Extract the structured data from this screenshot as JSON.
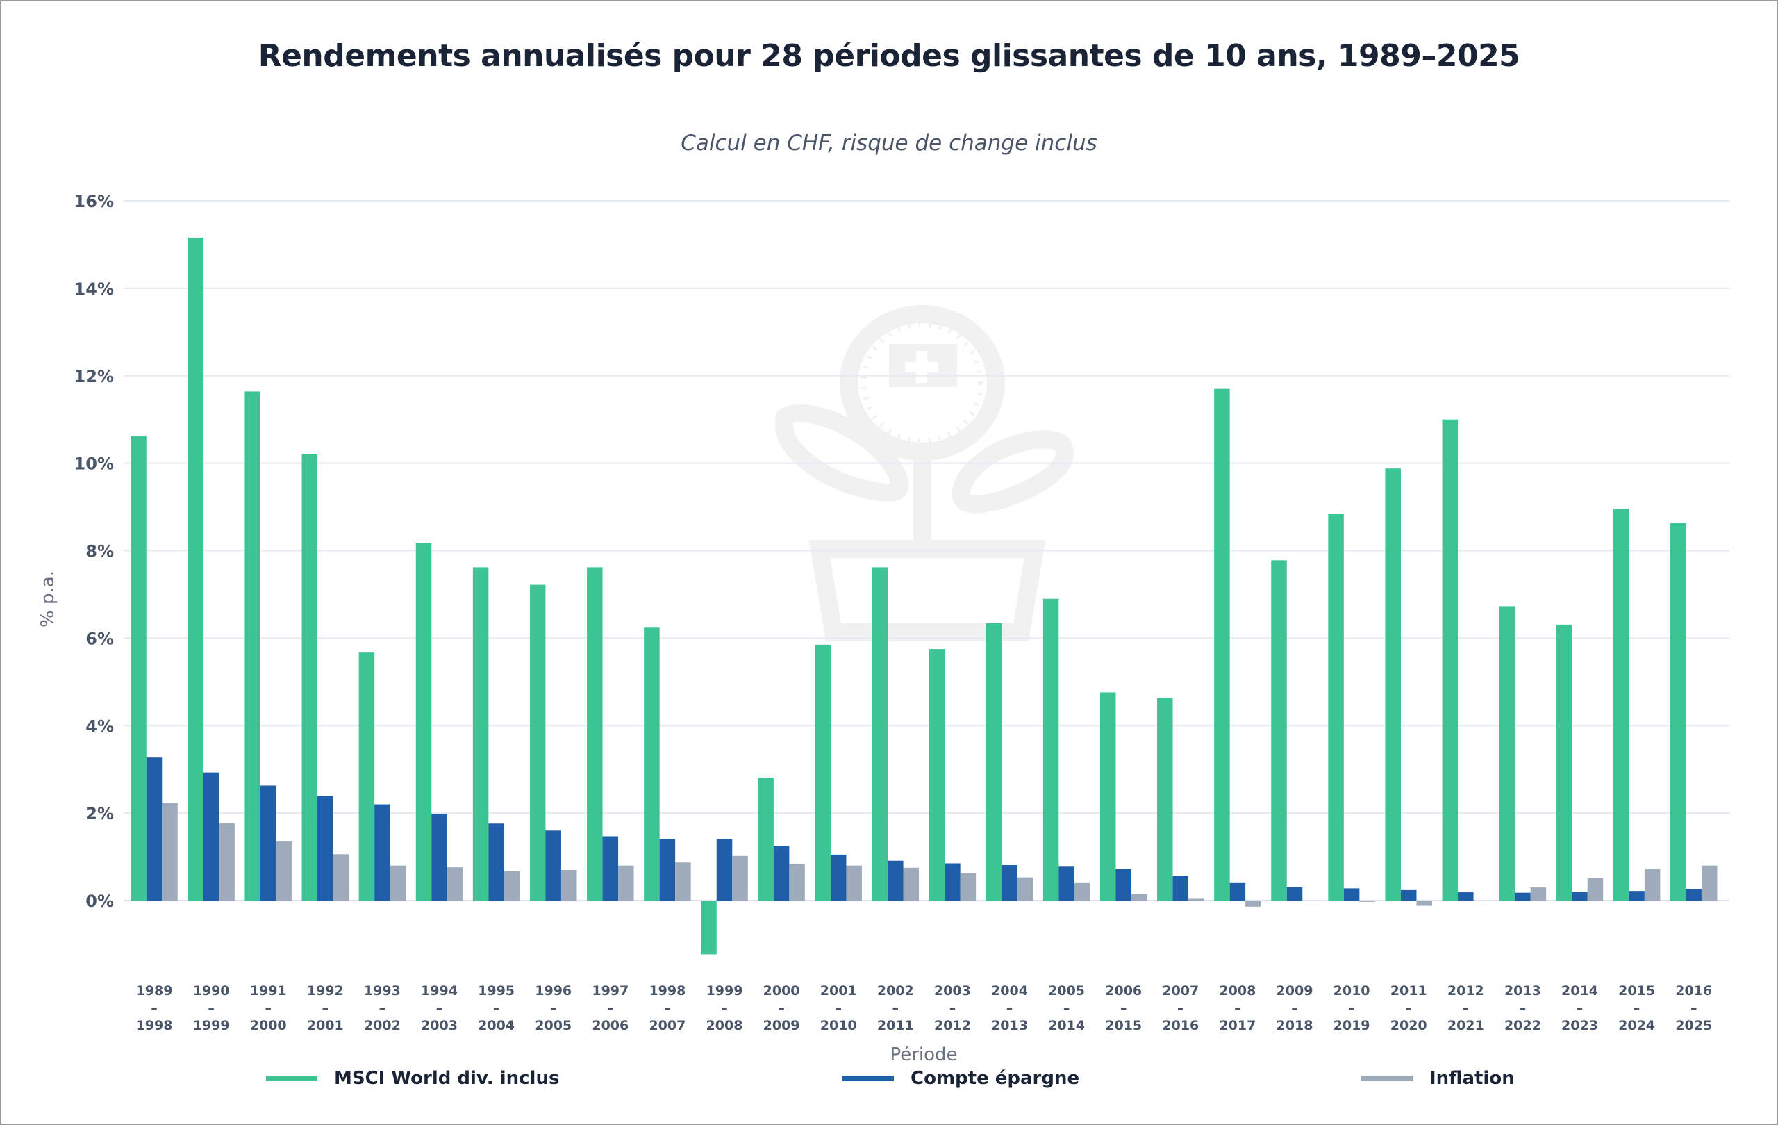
{
  "chart_data": {
    "type": "bar",
    "title": "Rendements annualisés pour 28 périodes glissantes de 10 ans, 1989–2025",
    "subtitle": "Calcul en CHF, risque de change inclus",
    "xlabel": "Période",
    "ylabel": "% p.a.",
    "ylim": [
      -2,
      16
    ],
    "yticks": [
      0,
      2,
      4,
      6,
      8,
      10,
      12,
      14,
      16
    ],
    "ytick_labels": [
      "0%",
      "2%",
      "4%",
      "6%",
      "8%",
      "10%",
      "12%",
      "14%",
      "16%"
    ],
    "grid": true,
    "legend_position": "bottom",
    "categories": [
      {
        "start": "1989",
        "sep": "–",
        "end": "1998"
      },
      {
        "start": "1990",
        "sep": "–",
        "end": "1999"
      },
      {
        "start": "1991",
        "sep": "–",
        "end": "2000"
      },
      {
        "start": "1992",
        "sep": "–",
        "end": "2001"
      },
      {
        "start": "1993",
        "sep": "–",
        "end": "2002"
      },
      {
        "start": "1994",
        "sep": "–",
        "end": "2003"
      },
      {
        "start": "1995",
        "sep": "–",
        "end": "2004"
      },
      {
        "start": "1996",
        "sep": "–",
        "end": "2005"
      },
      {
        "start": "1997",
        "sep": "–",
        "end": "2006"
      },
      {
        "start": "1998",
        "sep": "–",
        "end": "2007"
      },
      {
        "start": "1999",
        "sep": "–",
        "end": "2008"
      },
      {
        "start": "2000",
        "sep": "–",
        "end": "2009"
      },
      {
        "start": "2001",
        "sep": "–",
        "end": "2010"
      },
      {
        "start": "2002",
        "sep": "–",
        "end": "2011"
      },
      {
        "start": "2003",
        "sep": "–",
        "end": "2012"
      },
      {
        "start": "2004",
        "sep": "–",
        "end": "2013"
      },
      {
        "start": "2005",
        "sep": "–",
        "end": "2014"
      },
      {
        "start": "2006",
        "sep": "–",
        "end": "2015"
      },
      {
        "start": "2007",
        "sep": "–",
        "end": "2016"
      },
      {
        "start": "2008",
        "sep": "–",
        "end": "2017"
      },
      {
        "start": "2009",
        "sep": "–",
        "end": "2018"
      },
      {
        "start": "2010",
        "sep": "–",
        "end": "2019"
      },
      {
        "start": "2011",
        "sep": "–",
        "end": "2020"
      },
      {
        "start": "2012",
        "sep": "–",
        "end": "2021"
      },
      {
        "start": "2013",
        "sep": "–",
        "end": "2022"
      },
      {
        "start": "2014",
        "sep": "–",
        "end": "2023"
      },
      {
        "start": "2015",
        "sep": "–",
        "end": "2024"
      },
      {
        "start": "2016",
        "sep": "–",
        "end": "2025"
      }
    ],
    "series": [
      {
        "name": "MSCI World div. inclus",
        "color": "#3cc492",
        "values": [
          10.62,
          15.16,
          11.64,
          10.21,
          5.67,
          8.18,
          7.62,
          7.22,
          7.62,
          6.24,
          -1.23,
          2.81,
          5.85,
          7.62,
          5.75,
          6.34,
          6.9,
          4.76,
          4.63,
          11.7,
          7.78,
          8.85,
          9.88,
          11.0,
          6.73,
          6.31,
          8.96,
          8.63
        ]
      },
      {
        "name": "Compte épargne",
        "color": "#1f5ea8",
        "values": [
          3.27,
          2.93,
          2.63,
          2.39,
          2.2,
          1.98,
          1.76,
          1.6,
          1.47,
          1.41,
          1.4,
          1.25,
          1.05,
          0.91,
          0.85,
          0.81,
          0.79,
          0.72,
          0.57,
          0.4,
          0.31,
          0.28,
          0.24,
          0.19,
          0.18,
          0.2,
          0.22,
          0.26
        ]
      },
      {
        "name": "Inflation",
        "color": "#9eabbb",
        "values": [
          2.23,
          1.77,
          1.35,
          1.06,
          0.8,
          0.76,
          0.67,
          0.7,
          0.8,
          0.87,
          1.02,
          0.83,
          0.8,
          0.75,
          0.63,
          0.53,
          0.4,
          0.15,
          0.04,
          -0.14,
          -0.01,
          -0.03,
          -0.12,
          0.0,
          0.3,
          0.51,
          0.73,
          0.8
        ]
      }
    ]
  },
  "watermark": {
    "icon": "swiss-flower-pot-logo"
  }
}
